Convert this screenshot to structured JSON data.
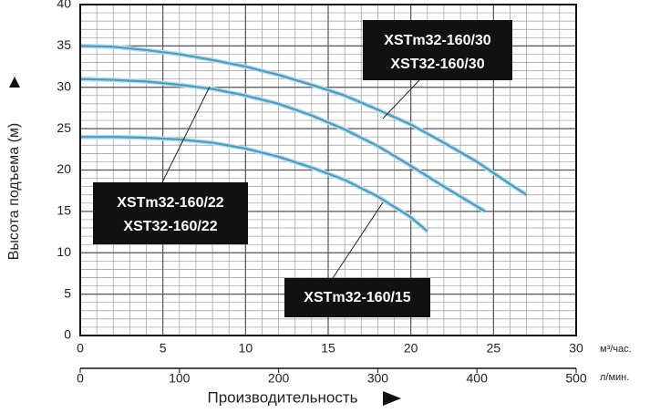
{
  "chart_data": {
    "type": "line",
    "ylabel": "Высота подъема (м)",
    "xlabel": "Производительность",
    "xunit": "м³/час.",
    "x2unit": "л/мин.",
    "xlim": [
      0,
      30
    ],
    "xticks": [
      0,
      5,
      10,
      15,
      20,
      25,
      30
    ],
    "x2lim": [
      0,
      500
    ],
    "x2ticks": [
      0,
      100,
      200,
      300,
      400,
      500
    ],
    "ylim": [
      0,
      40
    ],
    "yticks": [
      0,
      5,
      10,
      15,
      20,
      25,
      30,
      35,
      40
    ],
    "grid": true,
    "minor_grid": [
      1,
      1
    ],
    "series": [
      {
        "name": "XSTm32-160/30",
        "alt_name": "XST32-160/30",
        "color": "#4a9cc0",
        "x": [
          0,
          2,
          4,
          6,
          8,
          10,
          12,
          14,
          16,
          18,
          20,
          22,
          24,
          26,
          27
        ],
        "values": [
          35,
          34.9,
          34.5,
          34,
          33.3,
          32.5,
          31.5,
          30.3,
          29,
          27.3,
          25.5,
          23.3,
          21,
          18.3,
          17
        ]
      },
      {
        "name": "XSTm32-160/22",
        "alt_name": "XST32-160/22",
        "color": "#4a9cc0",
        "x": [
          0,
          2,
          4,
          6,
          8,
          10,
          12,
          14,
          16,
          18,
          20,
          22,
          24.5
        ],
        "values": [
          31,
          30.9,
          30.7,
          30.3,
          29.8,
          29,
          28,
          26.6,
          24.9,
          22.9,
          20.5,
          18,
          15
        ]
      },
      {
        "name": "XSTm32-160/15",
        "color": "#4a9cc0",
        "x": [
          0,
          2,
          4,
          6,
          8,
          10,
          12,
          14,
          16,
          18,
          20,
          21
        ],
        "values": [
          24,
          24,
          23.9,
          23.7,
          23.3,
          22.6,
          21.6,
          20.3,
          18.8,
          16.8,
          14.3,
          12.6
        ]
      }
    ]
  }
}
